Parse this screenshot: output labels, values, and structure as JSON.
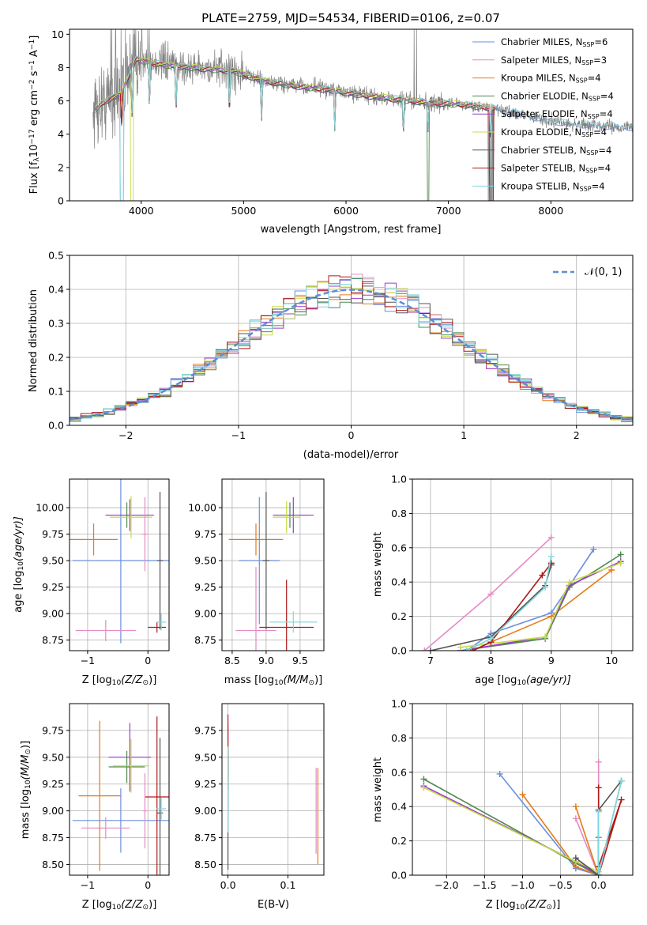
{
  "colors": {
    "chabrier_miles": "#6a8fdd",
    "salpeter_miles": "#e58ac3",
    "kroupa_miles": "#e37b1c",
    "chabrier_elodie": "#4e8a4e",
    "salpeter_elodie": "#9b3fc5",
    "kroupa_elodie": "#c8dc4a",
    "chabrier_stelib": "#555555",
    "salpeter_stelib": "#b01818",
    "kroupa_stelib": "#7fd8dd",
    "data": "#808080",
    "normal": "#5b8fd6"
  },
  "chart_data": [
    {
      "id": "spectrum",
      "type": "line",
      "title": "PLATE=2759, MJD=54534, FIBERID=0106, z=0.07",
      "xlabel": "wavelength [Angstrom, rest frame]",
      "ylabel_main": "Flux [f",
      "ylabel_sub": "λ",
      "ylabel_rest": "10",
      "ylabel_rest_sup": "−17",
      "ylabel_units": " erg cm",
      "ylabel_units2": " s",
      "ylabel_units3": " A",
      "xlim": [
        3300,
        8800
      ],
      "ylim": [
        0,
        10.3
      ],
      "xticks": [
        4000,
        5000,
        6000,
        7000,
        8000
      ],
      "yticks": [
        0,
        2,
        4,
        6,
        8,
        10
      ],
      "legend_location": "upper right",
      "series": [
        {
          "name": "Chabrier MILES, N",
          "sub": "SSP",
          "suffix": "=6",
          "color_key": "chabrier_miles"
        },
        {
          "name": "Salpeter MILES, N",
          "sub": "SSP",
          "suffix": "=3",
          "color_key": "salpeter_miles"
        },
        {
          "name": "Kroupa MILES, N",
          "sub": "SSP",
          "suffix": "=4",
          "color_key": "kroupa_miles"
        },
        {
          "name": "Chabrier ELODIE, N",
          "sub": "SSP",
          "suffix": "=4",
          "color_key": "chabrier_elodie"
        },
        {
          "name": "Salpeter ELODIE, N",
          "sub": "SSP",
          "suffix": "=4",
          "color_key": "salpeter_elodie"
        },
        {
          "name": "Kroupa ELODIE, N",
          "sub": "SSP",
          "suffix": "=4",
          "color_key": "kroupa_elodie"
        },
        {
          "name": "Chabrier STELIB, N",
          "sub": "SSP",
          "suffix": "=4",
          "color_key": "chabrier_stelib"
        },
        {
          "name": "Salpeter STELIB, N",
          "sub": "SSP",
          "suffix": "=4",
          "color_key": "salpeter_stelib"
        },
        {
          "name": "Kroupa STELIB, N",
          "sub": "SSP",
          "suffix": "=4",
          "color_key": "kroupa_stelib"
        }
      ],
      "continuum": [
        [
          3550,
          5.5
        ],
        [
          3650,
          6.0
        ],
        [
          3800,
          6.4
        ],
        [
          3950,
          8.5
        ],
        [
          4100,
          8.3
        ],
        [
          4300,
          8.1
        ],
        [
          4500,
          8.0
        ],
        [
          4700,
          7.9
        ],
        [
          4900,
          7.8
        ],
        [
          5200,
          7.2
        ],
        [
          5500,
          6.9
        ],
        [
          5800,
          6.7
        ],
        [
          6100,
          6.4
        ],
        [
          6500,
          6.1
        ],
        [
          6800,
          5.9
        ],
        [
          7100,
          5.8
        ],
        [
          7400,
          5.6
        ],
        [
          7700,
          5.2
        ],
        [
          8000,
          4.8
        ],
        [
          8200,
          4.6
        ],
        [
          8500,
          4.5
        ],
        [
          8800,
          4.4
        ]
      ],
      "absorption_dips": [
        [
          3810,
          0.2
        ],
        [
          3910,
          0.5
        ],
        [
          4080,
          3.5
        ],
        [
          4340,
          5.0
        ],
        [
          4861,
          5.8
        ],
        [
          5175,
          6.3
        ],
        [
          5890,
          6.0
        ],
        [
          6560,
          6.4
        ],
        [
          6800,
          0.0
        ],
        [
          7410,
          0.0
        ]
      ],
      "grid": false
    },
    {
      "id": "residuals",
      "type": "histogram",
      "xlabel": "(data-model)/error",
      "ylabel": "Normed distribution",
      "xlim": [
        -2.5,
        2.5
      ],
      "ylim": [
        0,
        0.5
      ],
      "xticks": [
        -2,
        -1,
        0,
        1,
        2
      ],
      "yticks": [
        0,
        0.1,
        0.2,
        0.3,
        0.4,
        0.5
      ],
      "legend": "𝒩(0, 1)",
      "legend_location": "upper right",
      "bin_width": 0.1,
      "grid": true
    },
    {
      "id": "age_vs_Z",
      "type": "errorbar",
      "xlabel": "Z [log",
      "xlabel_sub": "10",
      "xlabel_rest": "(Z/Z",
      "xlabel_end": ")]",
      "ylabel": "age  [log",
      "ylabel_sub": "10",
      "ylabel_rest": "(age/yr)]",
      "xlim": [
        -1.3,
        0.35
      ],
      "ylim": [
        8.65,
        10.27
      ],
      "xticks": [
        -1,
        0
      ],
      "yticks": [
        8.75,
        9.0,
        9.25,
        9.5,
        9.75,
        10.0
      ],
      "points": [
        {
          "x": -0.45,
          "xerr": 0.8,
          "y": 9.5,
          "yerr": 0.78,
          "color_key": "chabrier_miles"
        },
        {
          "x": -0.7,
          "xerr": 0.5,
          "y": 8.84,
          "yerr": 0.1,
          "color_key": "salpeter_miles"
        },
        {
          "x": -0.9,
          "xerr": 0.4,
          "y": 9.7,
          "yerr": 0.15,
          "color_key": "kroupa_miles"
        },
        {
          "x": -0.35,
          "xerr": 0.35,
          "y": 9.93,
          "yerr": 0.12,
          "color_key": "chabrier_elodie"
        },
        {
          "x": -0.3,
          "xerr": 0.4,
          "y": 9.93,
          "yerr": 0.15,
          "color_key": "salpeter_elodie"
        },
        {
          "x": -0.28,
          "xerr": 0.35,
          "y": 9.91,
          "yerr": 0.2,
          "color_key": "kroupa_elodie"
        },
        {
          "x": 0.2,
          "xerr": 0.05,
          "y": 9.5,
          "yerr": 0.65,
          "color_key": "chabrier_stelib"
        },
        {
          "x": 0.15,
          "xerr": 0.15,
          "y": 8.87,
          "yerr": 0.05,
          "color_key": "salpeter_stelib"
        },
        {
          "x": 0.22,
          "xerr": 0.08,
          "y": 8.92,
          "yerr": 0.08,
          "color_key": "kroupa_stelib"
        },
        {
          "x": -0.05,
          "xerr": 0.05,
          "y": 9.75,
          "yerr": 0.35,
          "color_key": "salpeter_miles"
        }
      ],
      "grid": true
    },
    {
      "id": "age_vs_mass",
      "type": "errorbar",
      "xlabel": "mass [log",
      "xlabel_sub": "10",
      "xlabel_rest": "(M/M",
      "xlabel_end": ")]",
      "xlim": [
        8.35,
        9.85
      ],
      "ylim": [
        8.65,
        10.27
      ],
      "xticks": [
        8.5,
        9.0,
        9.5
      ],
      "yticks": [
        8.75,
        9.0,
        9.25,
        9.5,
        9.75,
        10.0
      ],
      "points": [
        {
          "x": 8.9,
          "xerr": 0.3,
          "y": 9.5,
          "yerr": 0.6,
          "color_key": "chabrier_miles"
        },
        {
          "x": 8.85,
          "xerr": 0.3,
          "y": 8.84,
          "yerr": 0.6,
          "color_key": "salpeter_miles"
        },
        {
          "x": 8.85,
          "xerr": 0.4,
          "y": 9.7,
          "yerr": 0.15,
          "color_key": "kroupa_miles"
        },
        {
          "x": 9.35,
          "xerr": 0.25,
          "y": 9.93,
          "yerr": 0.12,
          "color_key": "chabrier_elodie"
        },
        {
          "x": 9.4,
          "xerr": 0.3,
          "y": 9.93,
          "yerr": 0.17,
          "color_key": "salpeter_elodie"
        },
        {
          "x": 9.3,
          "xerr": 0.2,
          "y": 9.91,
          "yerr": 0.15,
          "color_key": "kroupa_elodie"
        },
        {
          "x": 9.0,
          "xerr": 0.05,
          "y": 9.5,
          "yerr": 0.65,
          "color_key": "chabrier_stelib"
        },
        {
          "x": 9.3,
          "xerr": 0.4,
          "y": 8.87,
          "yerr": 0.45,
          "color_key": "salpeter_stelib"
        },
        {
          "x": 9.4,
          "xerr": 0.35,
          "y": 8.92,
          "yerr": 0.1,
          "color_key": "kroupa_stelib"
        }
      ],
      "grid": true
    },
    {
      "id": "weight_vs_age",
      "type": "line",
      "xlabel": "age  [log",
      "xlabel_sub": "10",
      "xlabel_rest": "(age/yr)]",
      "ylabel": "mass weight",
      "xlim": [
        6.7,
        10.35
      ],
      "ylim": [
        0,
        1
      ],
      "xticks": [
        7,
        8,
        9,
        10
      ],
      "yticks": [
        0.0,
        0.2,
        0.4,
        0.6,
        0.8,
        1.0
      ],
      "series": [
        {
          "color_key": "chabrier_miles",
          "x": [
            7.6,
            8.0,
            9.0,
            9.7
          ],
          "y": [
            0.0,
            0.1,
            0.22,
            0.59
          ]
        },
        {
          "color_key": "salpeter_miles",
          "x": [
            6.9,
            8.0,
            9.0
          ],
          "y": [
            0.0,
            0.33,
            0.66
          ]
        },
        {
          "color_key": "kroupa_miles",
          "x": [
            7.7,
            8.0,
            9.0,
            10.0
          ],
          "y": [
            0.0,
            0.05,
            0.2,
            0.47
          ]
        },
        {
          "color_key": "chabrier_elodie",
          "x": [
            7.5,
            8.9,
            9.3,
            10.15
          ],
          "y": [
            0.0,
            0.07,
            0.37,
            0.56
          ]
        },
        {
          "color_key": "salpeter_elodie",
          "x": [
            7.5,
            8.9,
            9.3,
            10.15
          ],
          "y": [
            0.0,
            0.08,
            0.38,
            0.52
          ]
        },
        {
          "color_key": "kroupa_elodie",
          "x": [
            7.5,
            8.9,
            9.3,
            10.15
          ],
          "y": [
            0.02,
            0.08,
            0.4,
            0.51
          ]
        },
        {
          "color_key": "chabrier_stelib",
          "x": [
            7.0,
            8.0,
            8.9,
            9.0
          ],
          "y": [
            0.0,
            0.08,
            0.38,
            0.5
          ]
        },
        {
          "color_key": "salpeter_stelib",
          "x": [
            7.7,
            8.0,
            8.85,
            9.0
          ],
          "y": [
            0.0,
            0.05,
            0.44,
            0.51
          ]
        },
        {
          "color_key": "kroupa_stelib",
          "x": [
            7.6,
            8.0,
            8.9,
            9.0
          ],
          "y": [
            0.0,
            0.07,
            0.37,
            0.55
          ]
        }
      ],
      "grid": true
    },
    {
      "id": "mass_vs_Z",
      "type": "errorbar",
      "xlabel": "Z [log",
      "xlabel_sub": "10",
      "xlabel_rest": "(Z/Z",
      "xlabel_end": ")]",
      "ylabel": "mass [log",
      "ylabel_sub": "10",
      "ylabel_rest": "(M/M",
      "ylabel_end": ")]",
      "xlim": [
        -1.3,
        0.35
      ],
      "ylim": [
        8.4,
        10.0
      ],
      "xticks": [
        -1,
        0
      ],
      "yticks": [
        8.5,
        8.75,
        9.0,
        9.25,
        9.5,
        9.75
      ],
      "points": [
        {
          "x": -0.45,
          "xerr": 0.8,
          "y": 8.91,
          "yerr": 0.3,
          "color_key": "chabrier_miles"
        },
        {
          "x": -0.7,
          "xerr": 0.4,
          "y": 8.84,
          "yerr": 0.1,
          "color_key": "salpeter_miles"
        },
        {
          "x": -0.8,
          "xerr": 0.35,
          "y": 9.14,
          "yerr": 0.7,
          "color_key": "kroupa_miles"
        },
        {
          "x": -0.35,
          "xerr": 0.3,
          "y": 9.41,
          "yerr": 0.15,
          "color_key": "chabrier_elodie"
        },
        {
          "x": -0.3,
          "xerr": 0.35,
          "y": 9.5,
          "yerr": 0.32,
          "color_key": "salpeter_elodie"
        },
        {
          "x": -0.28,
          "xerr": 0.3,
          "y": 9.42,
          "yerr": 0.25,
          "color_key": "kroupa_elodie"
        },
        {
          "x": 0.2,
          "xerr": 0.05,
          "y": 8.98,
          "yerr": 0.7,
          "color_key": "chabrier_stelib"
        },
        {
          "x": 0.15,
          "xerr": 0.2,
          "y": 9.13,
          "yerr": 0.75,
          "color_key": "salpeter_stelib"
        },
        {
          "x": 0.22,
          "xerr": 0.08,
          "y": 9.02,
          "yerr": 0.1,
          "color_key": "kroupa_stelib"
        },
        {
          "x": -0.05,
          "xerr": 0.03,
          "y": 9.0,
          "yerr": 0.35,
          "color_key": "salpeter_miles"
        }
      ],
      "grid": true
    },
    {
      "id": "mass_vs_ebv",
      "type": "errorbar",
      "xlabel": "E(B-V)",
      "xlim": [
        -0.01,
        0.16
      ],
      "ylim": [
        8.4,
        10.0
      ],
      "xticks": [
        0.0,
        0.1
      ],
      "yticks": [
        8.5,
        8.75,
        9.0,
        9.25,
        9.5,
        9.75
      ],
      "points": [
        {
          "x": 0.0,
          "xerr": 0.0,
          "y": 9.3,
          "yerr": 0.3,
          "color_key": "chabrier_miles"
        },
        {
          "x": 0.147,
          "xerr": 0.0,
          "y": 9.0,
          "yerr": 0.4,
          "color_key": "salpeter_miles"
        },
        {
          "x": 0.15,
          "xerr": 0.0,
          "y": 8.95,
          "yerr": 0.45,
          "color_key": "kroupa_miles"
        },
        {
          "x": 0.0,
          "xerr": 0.0,
          "y": 9.4,
          "yerr": 0.2,
          "color_key": "chabrier_elodie"
        },
        {
          "x": 0.0,
          "xerr": 0.0,
          "y": 9.5,
          "yerr": 0.3,
          "color_key": "salpeter_elodie"
        },
        {
          "x": 0.0,
          "xerr": 0.0,
          "y": 9.42,
          "yerr": 0.25,
          "color_key": "kroupa_elodie"
        },
        {
          "x": 0.0,
          "xerr": 0.0,
          "y": 9.0,
          "yerr": 0.55,
          "color_key": "chabrier_stelib"
        },
        {
          "x": 0.0,
          "xerr": 0.0,
          "y": 9.6,
          "yerr": 0.3,
          "color_key": "salpeter_stelib"
        },
        {
          "x": 0.0,
          "xerr": 0.0,
          "y": 9.2,
          "yerr": 0.4,
          "color_key": "kroupa_stelib"
        }
      ],
      "grid": true
    },
    {
      "id": "weight_vs_Z",
      "type": "line",
      "xlabel": "Z [log",
      "xlabel_sub": "10",
      "xlabel_rest": "(Z/Z",
      "xlabel_end": ")]",
      "ylabel": "mass weight",
      "xlim": [
        -2.45,
        0.45
      ],
      "ylim": [
        0,
        1
      ],
      "xticks": [
        -2.0,
        -1.5,
        -1.0,
        -0.5,
        0.0
      ],
      "yticks": [
        0.0,
        0.2,
        0.4,
        0.6,
        0.8,
        1.0
      ],
      "series": [
        {
          "color_key": "chabrier_miles",
          "x": [
            -1.3,
            -0.3,
            0.0,
            0.0
          ],
          "y": [
            0.59,
            0.04,
            0.0,
            0.22
          ]
        },
        {
          "color_key": "salpeter_miles",
          "x": [
            -0.3,
            0.0,
            0.0
          ],
          "y": [
            0.33,
            0.0,
            0.66
          ]
        },
        {
          "color_key": "kroupa_miles",
          "x": [
            -1.0,
            -0.3,
            0.0,
            -0.3
          ],
          "y": [
            0.47,
            0.05,
            0.0,
            0.4
          ]
        },
        {
          "color_key": "chabrier_elodie",
          "x": [
            -2.3,
            -0.3,
            0.0,
            0.3
          ],
          "y": [
            0.56,
            0.07,
            0.0,
            0.55
          ]
        },
        {
          "color_key": "salpeter_elodie",
          "x": [
            -2.3,
            -0.3,
            0.0
          ],
          "y": [
            0.52,
            0.08,
            0.0
          ]
        },
        {
          "color_key": "kroupa_elodie",
          "x": [
            -2.3,
            -0.3,
            0.0
          ],
          "y": [
            0.51,
            0.08,
            0.02
          ]
        },
        {
          "color_key": "chabrier_stelib",
          "x": [
            -0.3,
            0.0,
            0.0,
            0.3
          ],
          "y": [
            0.1,
            0.0,
            0.38,
            0.55
          ]
        },
        {
          "color_key": "salpeter_stelib",
          "x": [
            0.0,
            0.0,
            0.3,
            0.0
          ],
          "y": [
            0.51,
            0.0,
            0.44,
            0.05
          ]
        },
        {
          "color_key": "kroupa_stelib",
          "x": [
            0.0,
            0.0,
            0.3
          ],
          "y": [
            0.37,
            0.0,
            0.55
          ]
        }
      ],
      "grid": true
    }
  ]
}
